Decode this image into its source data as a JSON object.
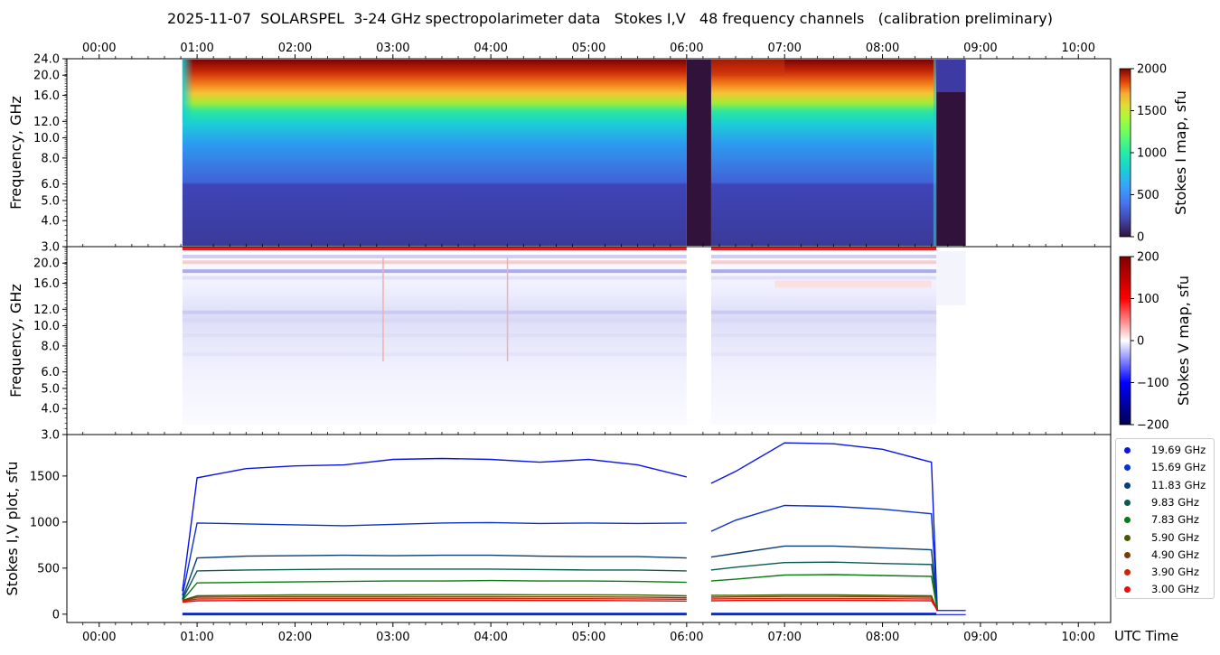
{
  "title": "2025-11-07  SOLARSPEL  3-24 GHz spectropolarimeter data   Stokes I,V   48 frequency channels   (calibration preliminary)",
  "time_axis": {
    "ticks": [
      "00:00",
      "01:00",
      "02:00",
      "03:00",
      "04:00",
      "05:00",
      "06:00",
      "07:00",
      "08:00",
      "09:00",
      "10:00"
    ],
    "xlabel": "UTC Time",
    "range_hours": [
      -0.33,
      10.33
    ]
  },
  "chart_data": [
    {
      "type": "heatmap",
      "name": "stokes-i-map",
      "ylabel": "Frequency, GHz",
      "yticks": [
        "3.0",
        "4.0",
        "5.0",
        "6.0",
        "8.0",
        "10.0",
        "12.0",
        "16.0",
        "20.0",
        "24.0"
      ],
      "ylim_ghz": [
        3.0,
        24.0
      ],
      "y_scale": "log",
      "colorbar": {
        "label": "Stokes I map, sfu",
        "ticks": [
          "0",
          "500",
          "1000",
          "1500",
          "2000"
        ],
        "range": [
          0,
          2000
        ],
        "colormap": "turbo"
      },
      "observation_windows_hours": [
        [
          0.85,
          6.0
        ],
        [
          6.25,
          8.55
        ]
      ],
      "gap_segments_hours": [
        [
          6.0,
          6.25
        ],
        [
          8.55,
          8.85
        ]
      ]
    },
    {
      "type": "heatmap",
      "name": "stokes-v-map",
      "ylabel": "Frequency, GHz",
      "yticks": [
        "3.0",
        "4.0",
        "5.0",
        "6.0",
        "8.0",
        "10.0",
        "12.0",
        "16.0",
        "20.0"
      ],
      "ylim_ghz": [
        3.0,
        24.0
      ],
      "y_scale": "log",
      "colorbar": {
        "label": "Stokes V map, sfu",
        "ticks": [
          "200",
          "100",
          "0",
          "−100",
          "−200"
        ],
        "range": [
          -200,
          200
        ],
        "colormap": "seismic"
      }
    },
    {
      "type": "line",
      "name": "stokes-iv-plot",
      "ylabel": "Stokes I,V plot, sfu",
      "yticks": [
        "0",
        "500",
        "1000",
        "1500"
      ],
      "ylim": [
        -90,
        1950
      ],
      "x": [
        0.85,
        1.0,
        1.5,
        2.0,
        2.5,
        3.0,
        3.5,
        4.0,
        4.5,
        5.0,
        5.5,
        6.0,
        6.25,
        6.5,
        7.0,
        7.5,
        8.0,
        8.5
      ],
      "series": [
        {
          "name": "19.69 GHz",
          "color": "#0a14e6",
          "values": [
            250,
            1480,
            1580,
            1610,
            1620,
            1680,
            1690,
            1680,
            1650,
            1680,
            1620,
            1490,
            1420,
            1550,
            1860,
            1850,
            1790,
            1650
          ]
        },
        {
          "name": "15.69 GHz",
          "color": "#0a32c8",
          "values": [
            200,
            990,
            980,
            970,
            960,
            975,
            990,
            995,
            985,
            990,
            985,
            990,
            900,
            1020,
            1180,
            1170,
            1140,
            1090
          ]
        },
        {
          "name": "11.83 GHz",
          "color": "#0a3c78",
          "values": [
            170,
            610,
            630,
            635,
            640,
            635,
            640,
            640,
            630,
            625,
            625,
            610,
            620,
            660,
            740,
            740,
            720,
            700
          ]
        },
        {
          "name": "9.83 GHz",
          "color": "#0a5a50",
          "values": [
            160,
            470,
            480,
            485,
            490,
            490,
            490,
            490,
            485,
            480,
            480,
            470,
            480,
            510,
            560,
            565,
            550,
            540
          ]
        },
        {
          "name": "7.83 GHz",
          "color": "#0a7a14",
          "values": [
            150,
            340,
            345,
            350,
            355,
            360,
            360,
            365,
            360,
            360,
            355,
            345,
            360,
            380,
            425,
            430,
            420,
            410
          ]
        },
        {
          "name": "5.90 GHz",
          "color": "#445a0a",
          "values": [
            150,
            200,
            205,
            210,
            210,
            210,
            212,
            212,
            210,
            210,
            208,
            200,
            205,
            205,
            210,
            210,
            205,
            200
          ]
        },
        {
          "name": "4.90 GHz",
          "color": "#783c0a",
          "values": [
            145,
            185,
            188,
            190,
            190,
            190,
            190,
            190,
            188,
            188,
            186,
            180,
            185,
            188,
            192,
            192,
            190,
            185
          ]
        },
        {
          "name": "3.90 GHz",
          "color": "#c8280a",
          "values": [
            140,
            165,
            168,
            170,
            170,
            170,
            170,
            170,
            168,
            168,
            166,
            162,
            165,
            168,
            170,
            170,
            168,
            165
          ]
        },
        {
          "name": "3.00 GHz",
          "color": "#f00a0a",
          "values": [
            130,
            145,
            148,
            150,
            150,
            150,
            150,
            150,
            148,
            148,
            146,
            142,
            145,
            148,
            150,
            150,
            148,
            145
          ]
        }
      ],
      "stokes_v_near_zero": true,
      "legend_placement": "outside-right"
    }
  ]
}
